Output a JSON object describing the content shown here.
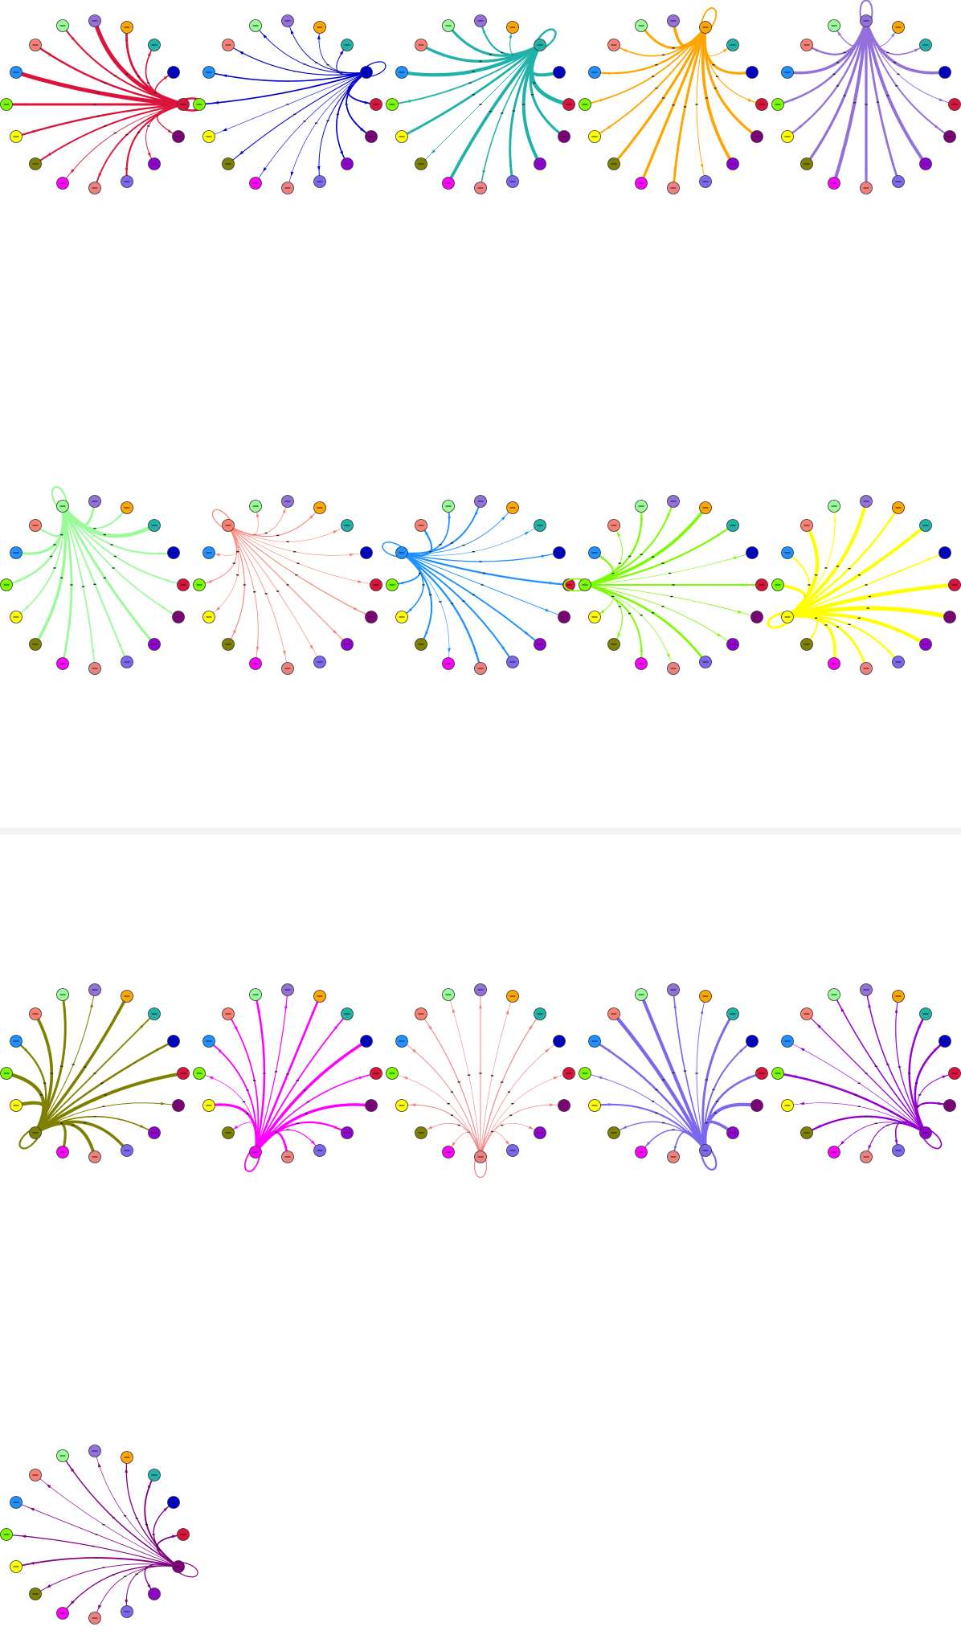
{
  "node_colors": [
    "#98FB98",
    "#9370DB",
    "#FFA500",
    "#20B2AA",
    "#0000CD",
    "#DC143C",
    "#800080",
    "#9400D3",
    "#7B68EE",
    "#F08080",
    "#FF00FF",
    "#808000",
    "#FFFF00",
    "#7CFC00",
    "#1E90FF",
    "#FA8072"
  ],
  "node_order": [
    0,
    1,
    2,
    3,
    4,
    5,
    6,
    7,
    8,
    9,
    10,
    11,
    12,
    13,
    14,
    15
  ],
  "panels": [
    {
      "hub": 5,
      "color": "#DC143C",
      "weight": 1.4
    },
    {
      "hub": 4,
      "color": "#0000CD",
      "weight": 0.5
    },
    {
      "hub": 3,
      "color": "#20B2AA",
      "weight": 1.3
    },
    {
      "hub": 2,
      "color": "#FFA500",
      "weight": 1.0
    },
    {
      "hub": 1,
      "color": "#9370DB",
      "weight": 1.1
    },
    {
      "hub": 0,
      "color": "#98FB98",
      "weight": 1.2
    },
    {
      "hub": 15,
      "color": "#FA8072",
      "weight": 0.3
    },
    {
      "hub": 14,
      "color": "#1E90FF",
      "weight": 0.8
    },
    {
      "hub": 13,
      "color": "#7CFC00",
      "weight": 1.0
    },
    {
      "hub": 12,
      "color": "#FFFF00",
      "weight": 1.6
    },
    {
      "hub": 11,
      "color": "#808000",
      "weight": 1.2
    },
    {
      "hub": 10,
      "color": "#FF00FF",
      "weight": 1.0
    },
    {
      "hub": 9,
      "color": "#F08080",
      "weight": 0.3
    },
    {
      "hub": 8,
      "color": "#7B68EE",
      "weight": 1.2
    },
    {
      "hub": 7,
      "color": "#9400D3",
      "weight": 0.9
    },
    {
      "hub": 6,
      "color": "#800080",
      "weight": 0.6
    }
  ]
}
